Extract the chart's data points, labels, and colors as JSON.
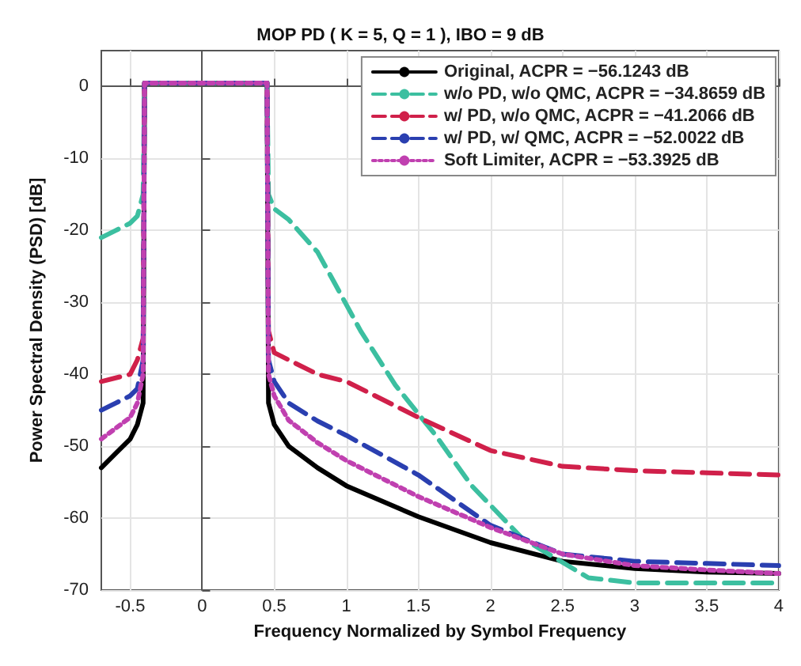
{
  "chart_data": {
    "type": "line",
    "title": "MOP PD ( K = 5, Q = 1 ), IBO = 9 dB",
    "xlabel": "Frequency Normalized by Symbol Frequency",
    "ylabel": "Power Spectral Density (PSD) [dB]",
    "xlim": [
      -0.7,
      4
    ],
    "xticks": [
      -0.5,
      0,
      0.5,
      1,
      1.5,
      2,
      2.5,
      3,
      3.5,
      4
    ],
    "ylim": [
      -70,
      5
    ],
    "yticks": [
      -70,
      -60,
      -50,
      -40,
      -30,
      -20,
      -10,
      0
    ],
    "grid": true,
    "legend": "top right",
    "marker": "none",
    "series": [
      {
        "name": "Original, ACPR = −56.1243 dB",
        "color": "#000000",
        "line_style": "solid",
        "x": [
          -0.7,
          -0.6,
          -0.5,
          -0.45,
          -0.41,
          -0.4,
          0,
          0.45,
          0.46,
          0.5,
          0.6,
          0.8,
          1,
          1.5,
          2,
          2.5,
          3,
          3.5,
          4
        ],
        "values": [
          -53,
          -51,
          -49,
          -47,
          -44,
          0.5,
          0.5,
          0.5,
          -44,
          -47,
          -50,
          -53,
          -55.5,
          -59.8,
          -63.4,
          -66,
          -67,
          -67.5,
          -67.7
        ]
      },
      {
        "name": "w/o PD, w/o QMC, ACPR = −34.8659 dB",
        "color": "#3cbfa0",
        "line_style": "dashed",
        "x": [
          -0.7,
          -0.6,
          -0.5,
          -0.45,
          -0.41,
          -0.4,
          0,
          0.45,
          0.46,
          0.5,
          0.6,
          0.8,
          0.91,
          1.1,
          1.34,
          1.62,
          1.87,
          2.22,
          2.68,
          3,
          3.5,
          4
        ],
        "values": [
          -21,
          -20,
          -19,
          -18,
          -15,
          0.5,
          0.5,
          0.5,
          -15,
          -17,
          -18.5,
          -23,
          -27,
          -34,
          -41.5,
          -48.5,
          -55.5,
          -62.8,
          -68.3,
          -69,
          -69,
          -69
        ]
      },
      {
        "name": "w/ PD, w/o QMC, ACPR = −41.2066 dB",
        "color": "#d0204a",
        "line_style": "dashed",
        "x": [
          -0.7,
          -0.6,
          -0.5,
          -0.45,
          -0.41,
          -0.4,
          0,
          0.45,
          0.46,
          0.5,
          0.6,
          0.8,
          1,
          1.5,
          2,
          2.5,
          3,
          3.5,
          4
        ],
        "values": [
          -41,
          -40.5,
          -40,
          -38,
          -35,
          0.5,
          0.5,
          0.5,
          -34,
          -37,
          -38,
          -40,
          -41,
          -46,
          -50.6,
          -52.8,
          -53.4,
          -53.7,
          -54
        ]
      },
      {
        "name": "w/ PD, w/ QMC, ACPR = −52.0022 dB",
        "color": "#2a3fb0",
        "line_style": "dashed",
        "x": [
          -0.7,
          -0.6,
          -0.5,
          -0.45,
          -0.41,
          -0.4,
          0,
          0.45,
          0.46,
          0.5,
          0.6,
          0.8,
          1,
          1.5,
          2,
          2.5,
          3,
          3.5,
          4
        ],
        "values": [
          -45,
          -44,
          -43,
          -42,
          -38,
          0.5,
          0.5,
          0.5,
          -38,
          -41,
          -44,
          -46.5,
          -48.5,
          -54,
          -61,
          -65,
          -66,
          -66.3,
          -66.6
        ]
      },
      {
        "name": "Soft Limiter, ACPR = −53.3925 dB",
        "color": "#c040b0",
        "line_style": "dotted",
        "x": [
          -0.7,
          -0.6,
          -0.5,
          -0.45,
          -0.41,
          -0.4,
          0,
          0.45,
          0.46,
          0.5,
          0.6,
          0.8,
          1,
          1.5,
          2,
          2.5,
          3,
          3.5,
          4
        ],
        "values": [
          -49,
          -47.5,
          -46,
          -44,
          -40,
          0.5,
          0.5,
          0.5,
          -40,
          -43,
          -46.4,
          -49.5,
          -52,
          -57,
          -61.3,
          -65,
          -66.6,
          -67.2,
          -67.7
        ]
      }
    ]
  }
}
